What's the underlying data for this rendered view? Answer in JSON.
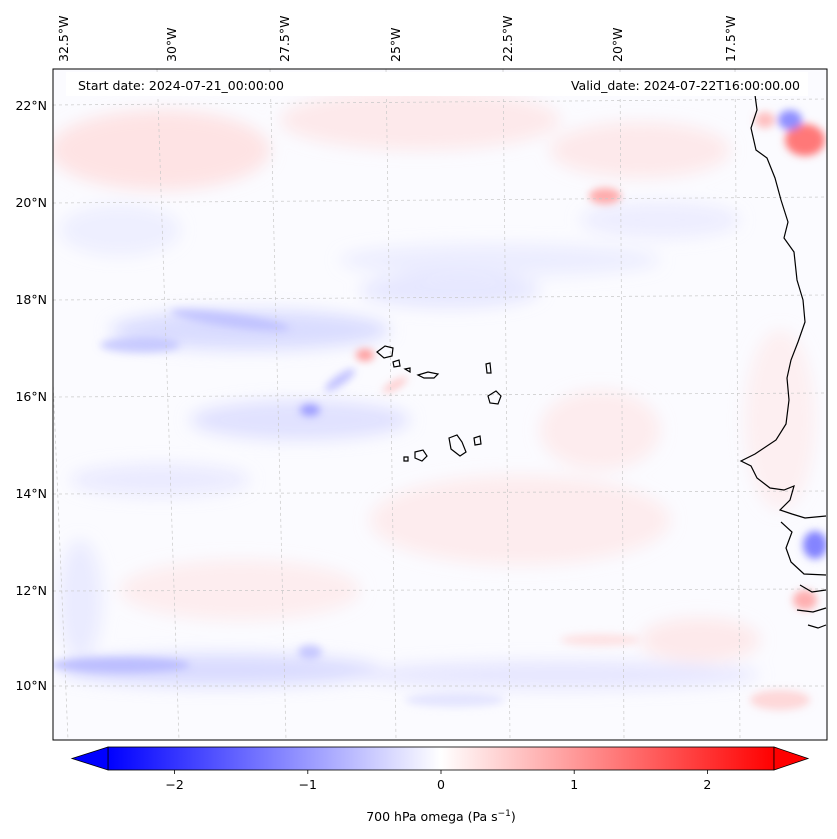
{
  "header": {
    "start_date": "Start date: 2024-07-21_00:00:00",
    "valid_date": "Valid_date: 2024-07-22T16:00:00.00"
  },
  "map": {
    "longitude_labels": [
      "32.5°W",
      "30°W",
      "27.5°W",
      "25°W",
      "22.5°W",
      "20°W",
      "17.5°W"
    ],
    "latitude_labels": [
      "22°N",
      "20°N",
      "18°N",
      "16°N",
      "14°N",
      "12°N",
      "10°N"
    ],
    "gridlines": true,
    "coastlines": true
  },
  "colorbar": {
    "label": "700 hPa omega (Pa s",
    "label_superscript": "−1",
    "label_suffix": ")",
    "tick_labels": [
      "−2",
      "−1",
      "0",
      "1",
      "2"
    ],
    "tick_values": [
      -2,
      -1,
      0,
      1,
      2
    ],
    "range": [
      -2.5,
      2.5
    ],
    "colormap": "bwr",
    "extend": "both",
    "colors": {
      "negative": "#0000ff",
      "zero": "#ffffff",
      "positive": "#ff0000"
    }
  }
}
